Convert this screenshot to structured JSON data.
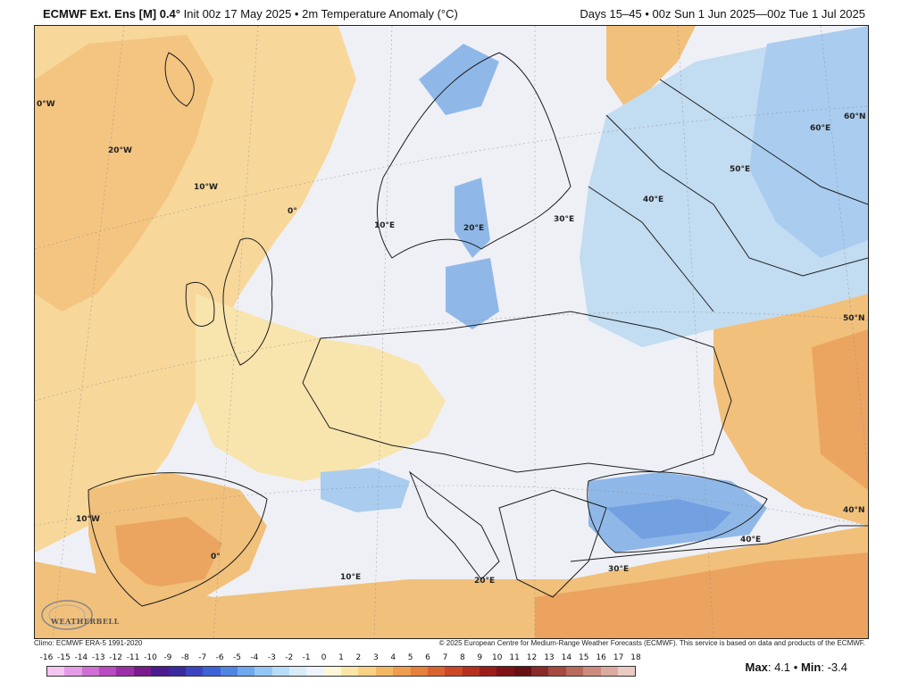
{
  "header": {
    "model": "ECMWF Ext. Ens [M] 0.4°",
    "init_text": "Init 00z 17 May 2025 • 2m Temperature Anomaly (°C)",
    "valid_text": "Days 15–45 • 00z Sun 1 Jun 2025—00z Tue 1 Jul 2025"
  },
  "map": {
    "region": "Europe",
    "lon_labels": [
      "0°W",
      "20°W",
      "10°W",
      "0°",
      "10°E",
      "20°E",
      "30°E",
      "40°E",
      "50°E",
      "60°E",
      "60°N",
      "50°N",
      "40°N",
      "10°W",
      "0°",
      "10°E",
      "20°E",
      "30°E",
      "40°E"
    ],
    "colors": {
      "ocean_warm": "#f7d79a",
      "land_warm": "#f1c07b",
      "land_hot": "#e89a55",
      "neutral": "#eef0f6",
      "cool": "#c2dcf1",
      "cold": "#8fb8e8",
      "coldest": "#5f8fdc",
      "boundary": "#1e1e1e"
    }
  },
  "logo": {
    "text": "WEATHERBELL"
  },
  "footer": {
    "climo": "Climo: ECMWF ERA-5 1991-2020",
    "copyright": "© 2025 European Centre for Medium-Range Weather Forecasts (ECMWF). This service is based on data and products of the ECMWF."
  },
  "colorbar": {
    "labels": [
      "-16",
      "-15",
      "-14",
      "-13",
      "-12",
      "-11",
      "-10",
      "-9",
      "-8",
      "-7",
      "-6",
      "-5",
      "-4",
      "-3",
      "-2",
      "-1",
      "0",
      "1",
      "2",
      "3",
      "4",
      "5",
      "6",
      "7",
      "8",
      "9",
      "10",
      "11",
      "12",
      "13",
      "14",
      "15",
      "16",
      "17",
      "18"
    ],
    "colors": [
      "#f3c5f0",
      "#e59be6",
      "#cf6fd4",
      "#b84bc0",
      "#9b2fa8",
      "#7a1a8c",
      "#4a1b8f",
      "#3a2aa0",
      "#3c45c0",
      "#3e63d6",
      "#4f86e4",
      "#6ea8ee",
      "#93c6f4",
      "#b7dcf7",
      "#d7ebf8",
      "#eef4fb",
      "#fdf7d8",
      "#fbe6a6",
      "#f8d283",
      "#f4b865",
      "#ee9c4d",
      "#e6803c",
      "#db6330",
      "#cc4826",
      "#b7301f",
      "#9c1c1a",
      "#7e1216",
      "#670f14",
      "#8a2b2b",
      "#a44a40",
      "#ba6a5c",
      "#cc8b7d",
      "#dbab9f",
      "#e9cbc2"
    ]
  },
  "stats": {
    "max_label": "Max",
    "max_value": "4.1",
    "sep": "•",
    "min_label": "Min",
    "min_value": "-3.4"
  }
}
